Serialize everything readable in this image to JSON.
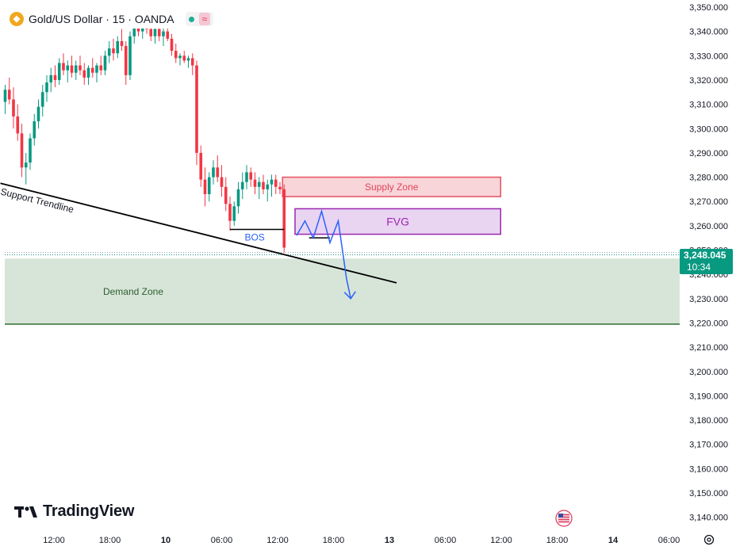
{
  "header": {
    "symbol_title": "Gold/US Dollar · 15 · OANDA",
    "icon": "gold-coin-icon",
    "status_icon": "market-open-dot-icon",
    "indicator_icon": "wave-icon",
    "indicator_glyph": "≈"
  },
  "branding": {
    "logo_text": "TradingView",
    "logo_icon": "tradingview-logo-icon"
  },
  "price_tag": {
    "price": "3,248.045",
    "countdown": "10:34"
  },
  "colors": {
    "up": "#089981",
    "down": "#f23645",
    "supply_fill": "#f8d5d9",
    "supply_border": "#e8515f",
    "fvg_fill": "#e9d4f1",
    "fvg_border": "#9c27b0",
    "demand_fill": "#d7e5d8",
    "demand_border": "#2e6b30",
    "path": "#2962ff"
  },
  "chart_data": {
    "type": "candlestick",
    "symbol": "Gold/US Dollar",
    "interval": "15",
    "source": "OANDA",
    "y_axis": {
      "min": 3136,
      "max": 3351,
      "position": "right",
      "ticks": [
        "3,350.000",
        "3,340.000",
        "3,330.000",
        "3,320.000",
        "3,310.000",
        "3,300.000",
        "3,290.000",
        "3,280.000",
        "3,270.000",
        "3,260.000",
        "3,250.000",
        "3,240.000",
        "3,230.000",
        "3,220.000",
        "3,210.000",
        "3,200.000",
        "3,190.000",
        "3,180.000",
        "3,170.000",
        "3,160.000",
        "3,150.000",
        "3,140.000"
      ],
      "tick_values": [
        3350,
        3340,
        3330,
        3320,
        3310,
        3300,
        3290,
        3280,
        3270,
        3260,
        3250,
        3240,
        3230,
        3220,
        3210,
        3200,
        3190,
        3180,
        3170,
        3160,
        3150,
        3140
      ]
    },
    "x_axis": {
      "labels": [
        "12:00",
        "18:00",
        "10",
        "06:00",
        "12:00",
        "18:00",
        "13",
        "06:00",
        "12:00",
        "18:00",
        "14",
        "06:00"
      ],
      "bold": [
        false,
        false,
        true,
        false,
        false,
        false,
        true,
        false,
        false,
        false,
        true,
        false
      ],
      "label_bar_index": [
        0,
        24,
        48,
        72,
        96,
        120,
        144,
        168,
        192,
        216,
        240,
        264
      ],
      "first_label_offset_bars": 21
    },
    "candles": [
      [
        3311,
        3318,
        3306,
        3316
      ],
      [
        3316,
        3321,
        3310,
        3312
      ],
      [
        3312,
        3317,
        3300,
        3305
      ],
      [
        3305,
        3310,
        3295,
        3298
      ],
      [
        3298,
        3302,
        3280,
        3284
      ],
      [
        3284,
        3290,
        3277,
        3286
      ],
      [
        3286,
        3298,
        3283,
        3296
      ],
      [
        3296,
        3306,
        3293,
        3303
      ],
      [
        3303,
        3312,
        3300,
        3309
      ],
      [
        3309,
        3318,
        3305,
        3315
      ],
      [
        3315,
        3322,
        3311,
        3319
      ],
      [
        3319,
        3325,
        3315,
        3322
      ],
      [
        3322,
        3326,
        3317,
        3320
      ],
      [
        3320,
        3329,
        3318,
        3327
      ],
      [
        3327,
        3331,
        3322,
        3324
      ],
      [
        3324,
        3328,
        3319,
        3326
      ],
      [
        3326,
        3330,
        3321,
        3323
      ],
      [
        3323,
        3328,
        3320,
        3326
      ],
      [
        3326,
        3330,
        3322,
        3324
      ],
      [
        3324,
        3327,
        3318,
        3321
      ],
      [
        3321,
        3326,
        3318,
        3325
      ],
      [
        3325,
        3329,
        3321,
        3323
      ],
      [
        3323,
        3327,
        3319,
        3326
      ],
      [
        3326,
        3330,
        3322,
        3324
      ],
      [
        3324,
        3332,
        3322,
        3330
      ],
      [
        3330,
        3336,
        3327,
        3333
      ],
      [
        3333,
        3337,
        3328,
        3331
      ],
      [
        3331,
        3338,
        3329,
        3336
      ],
      [
        3336,
        3341,
        3332,
        3334
      ],
      [
        3334,
        3336,
        3318,
        3322
      ],
      [
        3322,
        3340,
        3320,
        3338
      ],
      [
        3338,
        3345,
        3335,
        3342
      ],
      [
        3342,
        3348,
        3338,
        3340
      ],
      [
        3340,
        3346,
        3337,
        3344
      ],
      [
        3344,
        3347,
        3339,
        3341
      ],
      [
        3341,
        3344,
        3336,
        3338
      ],
      [
        3338,
        3343,
        3335,
        3341
      ],
      [
        3341,
        3345,
        3336,
        3338
      ],
      [
        3338,
        3342,
        3334,
        3340
      ],
      [
        3340,
        3344,
        3336,
        3337
      ],
      [
        3337,
        3339,
        3330,
        3332
      ],
      [
        3332,
        3335,
        3327,
        3329
      ],
      [
        3329,
        3331,
        3326,
        3330
      ],
      [
        3330,
        3332,
        3327,
        3328
      ],
      [
        3328,
        3330,
        3325,
        3329
      ],
      [
        3329,
        3331,
        3322,
        3326
      ],
      [
        3326,
        3328,
        3285,
        3290
      ],
      [
        3290,
        3293,
        3276,
        3279
      ],
      [
        3279,
        3284,
        3268,
        3273
      ],
      [
        3273,
        3282,
        3270,
        3280
      ],
      [
        3280,
        3287,
        3277,
        3284
      ],
      [
        3284,
        3289,
        3278,
        3280
      ],
      [
        3280,
        3285,
        3272,
        3276
      ],
      [
        3276,
        3280,
        3266,
        3269
      ],
      [
        3269,
        3272,
        3258,
        3262
      ],
      [
        3262,
        3270,
        3260,
        3268
      ],
      [
        3268,
        3278,
        3265,
        3275
      ],
      [
        3275,
        3282,
        3271,
        3278
      ],
      [
        3278,
        3285,
        3275,
        3282
      ],
      [
        3282,
        3284,
        3276,
        3279
      ],
      [
        3279,
        3282,
        3273,
        3276
      ],
      [
        3276,
        3280,
        3271,
        3278
      ],
      [
        3278,
        3281,
        3273,
        3275
      ],
      [
        3275,
        3279,
        3270,
        3277
      ],
      [
        3277,
        3281,
        3272,
        3279
      ],
      [
        3279,
        3281,
        3273,
        3276
      ],
      [
        3276,
        3278,
        3273,
        3275
      ],
      [
        3275,
        3277,
        3249,
        3251
      ]
    ],
    "zones": [
      {
        "label": "Supply Zone",
        "y_low": 3272,
        "y_high": 3280,
        "x_from_bar": 67,
        "x_to_bar": 119
      },
      {
        "label": "FVG",
        "y_low": 3256.5,
        "y_high": 3267,
        "x_from_bar": 70,
        "x_to_bar": 119
      },
      {
        "label": "Demand Zone",
        "y_low": 3219.5,
        "y_high": 3246.5,
        "x_from_bar": 0,
        "x_to_bar": 166
      }
    ],
    "bos": {
      "label": "BOS",
      "y": 3258.5,
      "x_from_bar": 54,
      "x_to_bar": 67
    },
    "trendline": {
      "label": "Support Trendline",
      "from": {
        "bar": 0,
        "y": 3277.5
      },
      "to": {
        "bar": 94,
        "y": 3236.5
      }
    },
    "projection_path": [
      [
        70,
        3256
      ],
      [
        72,
        3262
      ],
      [
        74,
        3255
      ],
      [
        76,
        3266
      ],
      [
        78,
        3253
      ],
      [
        80,
        3262
      ],
      [
        82,
        3238
      ],
      [
        83,
        3230
      ]
    ],
    "projection_shelf": {
      "y": 3255,
      "x_from_bar": 73,
      "x_to_bar": 78
    },
    "last_price": 3248.045,
    "countdown": "10:34"
  }
}
